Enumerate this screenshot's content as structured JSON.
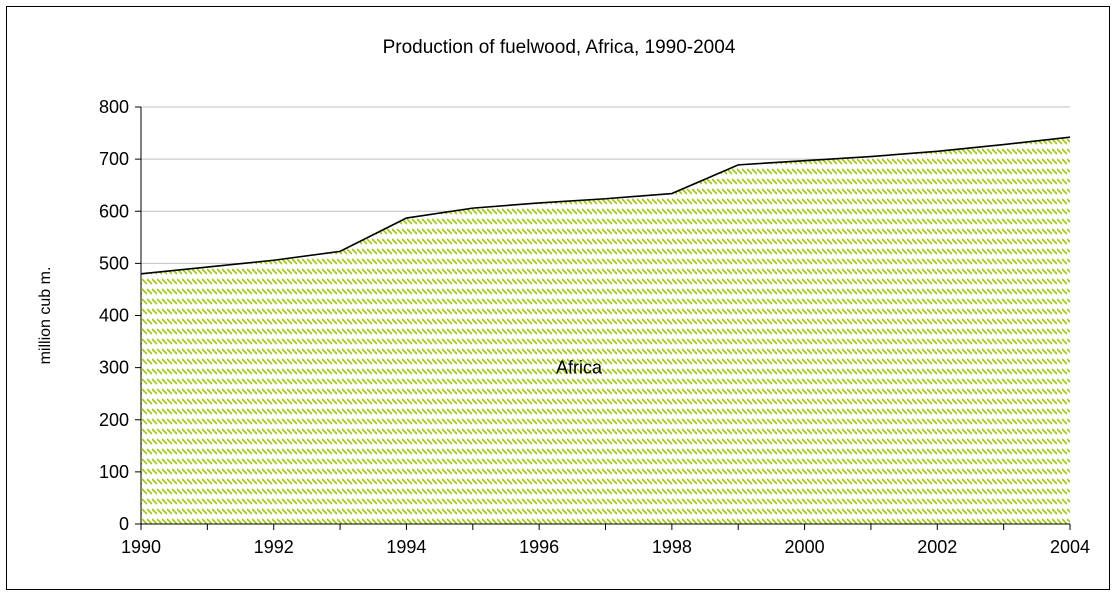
{
  "chart_data": {
    "type": "area",
    "title": "Production of fuelwood, Africa, 1990-2004",
    "xlabel": "",
    "ylabel": "million cub m.",
    "x": [
      1990,
      1991,
      1992,
      1993,
      1994,
      1995,
      1996,
      1997,
      1998,
      1999,
      2000,
      2001,
      2002,
      2003,
      2004
    ],
    "series": [
      {
        "name": "Africa",
        "values": [
          480,
          493,
          506,
          523,
          587,
          606,
          616,
          624,
          634,
          689,
          697,
          705,
          715,
          728,
          742
        ]
      }
    ],
    "xlim": [
      1990,
      2004
    ],
    "ylim": [
      0,
      800
    ],
    "x_ticks": [
      1990,
      1992,
      1994,
      1996,
      1998,
      2000,
      2002,
      2004
    ],
    "y_ticks": [
      0,
      100,
      200,
      300,
      400,
      500,
      600,
      700,
      800
    ],
    "grid": "horizontal",
    "legend": "none",
    "colors": {
      "fill_hatch": "#99cc00",
      "line": "#000000",
      "grid": "#c0c0c0"
    }
  }
}
